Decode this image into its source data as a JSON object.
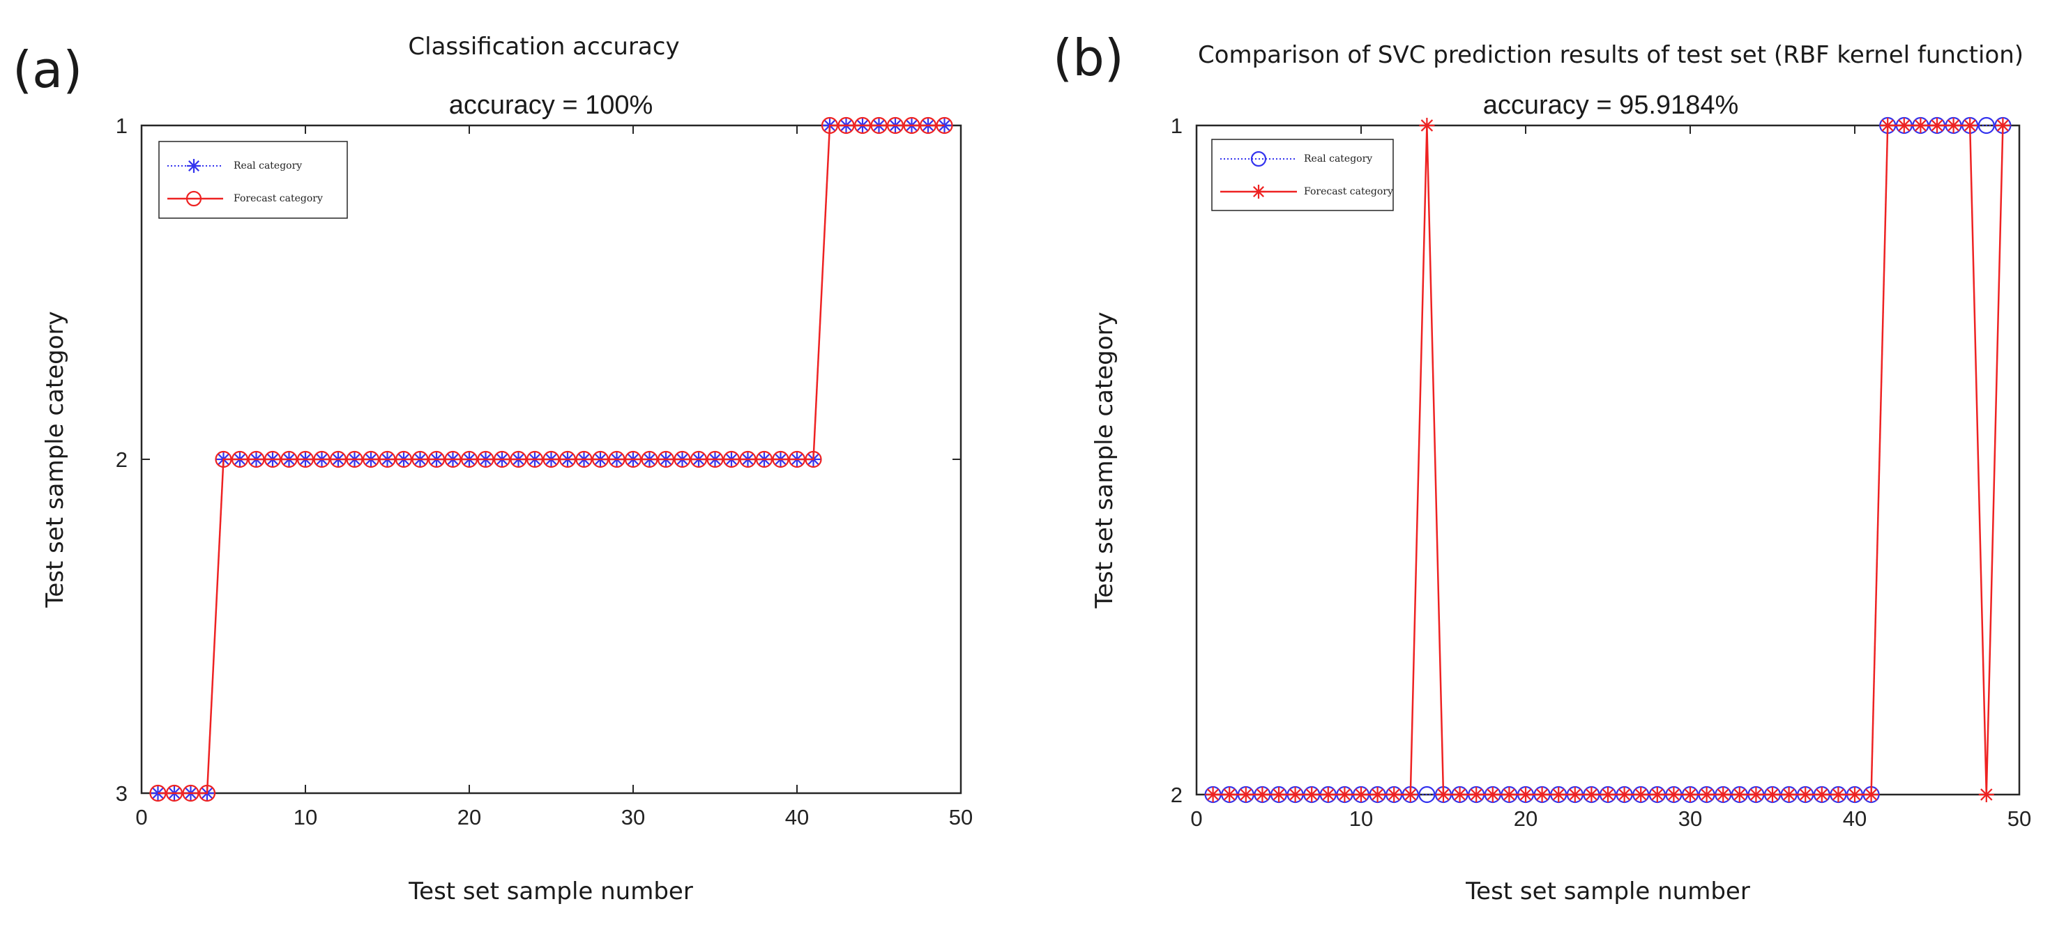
{
  "chart_data": [
    {
      "panel": "(a)",
      "type": "line",
      "title": "Classification accuracy",
      "subtitle": "accuracy = 100%",
      "xlabel": "Test set sample number",
      "ylabel": "Test set sample category",
      "xlim": [
        0,
        50
      ],
      "ylim": [
        1,
        3
      ],
      "y_reversed": true,
      "xticks": [
        0,
        10,
        20,
        30,
        40,
        50
      ],
      "yticks": [
        1,
        2,
        3
      ],
      "legend": "top-left",
      "x": [
        1,
        2,
        3,
        4,
        5,
        6,
        7,
        8,
        9,
        10,
        11,
        12,
        13,
        14,
        15,
        16,
        17,
        18,
        19,
        20,
        21,
        22,
        23,
        24,
        25,
        26,
        27,
        28,
        29,
        30,
        31,
        32,
        33,
        34,
        35,
        36,
        37,
        38,
        39,
        40,
        41,
        42,
        43,
        44,
        45,
        46,
        47,
        48,
        49
      ],
      "series": [
        {
          "name": "Real category",
          "color": "#3333ee",
          "line": "dotted",
          "marker": "asterisk",
          "values": [
            3,
            3,
            3,
            3,
            2,
            2,
            2,
            2,
            2,
            2,
            2,
            2,
            2,
            2,
            2,
            2,
            2,
            2,
            2,
            2,
            2,
            2,
            2,
            2,
            2,
            2,
            2,
            2,
            2,
            2,
            2,
            2,
            2,
            2,
            2,
            2,
            2,
            2,
            2,
            2,
            2,
            1,
            1,
            1,
            1,
            1,
            1,
            1,
            1
          ]
        },
        {
          "name": "Forecast category",
          "color": "#ee2222",
          "line": "solid",
          "marker": "circle",
          "values": [
            3,
            3,
            3,
            3,
            2,
            2,
            2,
            2,
            2,
            2,
            2,
            2,
            2,
            2,
            2,
            2,
            2,
            2,
            2,
            2,
            2,
            2,
            2,
            2,
            2,
            2,
            2,
            2,
            2,
            2,
            2,
            2,
            2,
            2,
            2,
            2,
            2,
            2,
            2,
            2,
            2,
            1,
            1,
            1,
            1,
            1,
            1,
            1,
            1
          ]
        }
      ]
    },
    {
      "panel": "(b)",
      "type": "line",
      "title": "Comparison of SVC prediction results of test set (RBF kernel function)",
      "subtitle": "accuracy = 95.9184%",
      "xlabel": "Test set sample number",
      "ylabel": "Test set sample category",
      "xlim": [
        0,
        50
      ],
      "ylim": [
        1,
        2
      ],
      "y_reversed": true,
      "xticks": [
        0,
        10,
        20,
        30,
        40,
        50
      ],
      "yticks": [
        1,
        2
      ],
      "legend": "top-left",
      "x": [
        1,
        2,
        3,
        4,
        5,
        6,
        7,
        8,
        9,
        10,
        11,
        12,
        13,
        14,
        15,
        16,
        17,
        18,
        19,
        20,
        21,
        22,
        23,
        24,
        25,
        26,
        27,
        28,
        29,
        30,
        31,
        32,
        33,
        34,
        35,
        36,
        37,
        38,
        39,
        40,
        41,
        42,
        43,
        44,
        45,
        46,
        47,
        48,
        49
      ],
      "series": [
        {
          "name": "Real category",
          "color": "#3333ee",
          "line": "dotted",
          "marker": "circle",
          "values": [
            2,
            2,
            2,
            2,
            2,
            2,
            2,
            2,
            2,
            2,
            2,
            2,
            2,
            2,
            2,
            2,
            2,
            2,
            2,
            2,
            2,
            2,
            2,
            2,
            2,
            2,
            2,
            2,
            2,
            2,
            2,
            2,
            2,
            2,
            2,
            2,
            2,
            2,
            2,
            2,
            2,
            1,
            1,
            1,
            1,
            1,
            1,
            1,
            1
          ]
        },
        {
          "name": "Forecast category",
          "color": "#ee2222",
          "line": "solid",
          "marker": "asterisk",
          "values": [
            2,
            2,
            2,
            2,
            2,
            2,
            2,
            2,
            2,
            2,
            2,
            2,
            2,
            1,
            2,
            2,
            2,
            2,
            2,
            2,
            2,
            2,
            2,
            2,
            2,
            2,
            2,
            2,
            2,
            2,
            2,
            2,
            2,
            2,
            2,
            2,
            2,
            2,
            2,
            2,
            2,
            1,
            1,
            1,
            1,
            1,
            1,
            2,
            1
          ]
        }
      ]
    }
  ]
}
